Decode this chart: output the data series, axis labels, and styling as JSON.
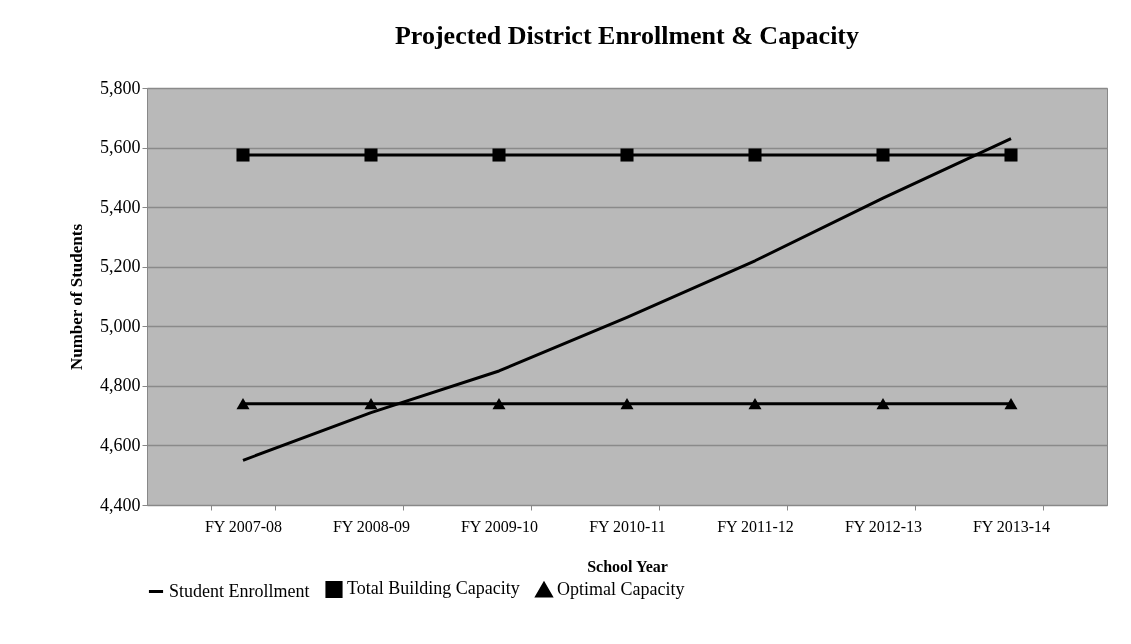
{
  "chart_data": {
    "type": "line",
    "title": "Projected District Enrollment & Capacity",
    "xlabel": "School Year",
    "ylabel": "Number of Students",
    "categories": [
      "FY 2007-08",
      "FY 2008-09",
      "FY 2009-10",
      "FY 2010-11",
      "FY 2011-12",
      "FY 2012-13",
      "FY 2013-14"
    ],
    "series": [
      {
        "name": "Student Enrollment",
        "color": "#000000",
        "marker": "none",
        "values": [
          4550,
          4710,
          4850,
          5030,
          5220,
          5430,
          5630
        ]
      },
      {
        "name": "Total Building Capacity",
        "color": "#000000",
        "marker": "square",
        "values": [
          5575,
          5575,
          5575,
          5575,
          5575,
          5575,
          5575
        ]
      },
      {
        "name": "Optimal Capacity",
        "color": "#000000",
        "marker": "triangle",
        "values": [
          4740,
          4740,
          4740,
          4740,
          4740,
          4740,
          4740
        ]
      }
    ],
    "ylim": [
      4400,
      5800
    ],
    "yticks": [
      {
        "value": 4400,
        "label": "4,400"
      },
      {
        "value": 4600,
        "label": "4,600"
      },
      {
        "value": 4800,
        "label": "4,800"
      },
      {
        "value": 5000,
        "label": "5,000"
      },
      {
        "value": 5200,
        "label": "5,200"
      },
      {
        "value": 5400,
        "label": "5,400"
      },
      {
        "value": 5600,
        "label": "5,600"
      },
      {
        "value": 5800,
        "label": "5,800"
      }
    ],
    "grid": "y",
    "legend": "bottom"
  }
}
